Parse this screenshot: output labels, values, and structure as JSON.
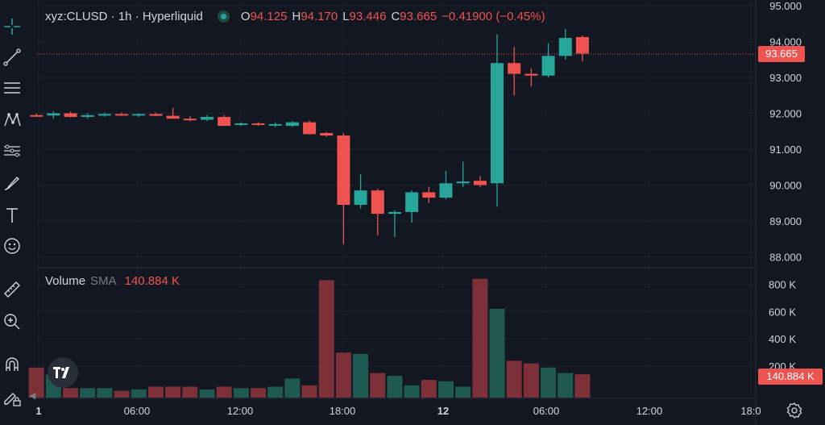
{
  "header": {
    "symbol": "xyz:CLUSD · 1h · Hyperliquid",
    "ohlc": [
      {
        "label": "O",
        "value": "94.125"
      },
      {
        "label": "H",
        "value": "94.170"
      },
      {
        "label": "L",
        "value": "93.446"
      },
      {
        "label": "C",
        "value": "93.665"
      }
    ],
    "change": "−0.41900 (−0.45%)"
  },
  "volume_legend": {
    "name": "Volume",
    "sma_label": "SMA",
    "value": "140.884 K"
  },
  "price_tag": "93.665",
  "volume_tag": "140.884 K",
  "colors": {
    "up": "#26a69a",
    "down": "#ef5350",
    "vol_up": "#1f5a52",
    "vol_down": "#7d3038",
    "bg": "#131722",
    "grid": "#1e222d",
    "text": "#d1d4dc"
  },
  "toolbar": [
    "crosshair-icon",
    "trend-line-icon",
    "horizontal-lines-icon",
    "pattern-icon",
    "fib-icon",
    "brush-icon",
    "text-icon",
    "emoji-icon",
    "ruler-icon",
    "zoom-icon",
    "magnet-icon",
    "lock-pencil-icon"
  ],
  "chart_data": {
    "type": "candlestick",
    "price_axis": {
      "labels": [
        "95.000",
        "94.000",
        "93.000",
        "92.000",
        "91.000",
        "90.000",
        "89.000",
        "88.000"
      ]
    },
    "volume_axis": {
      "labels": [
        "800 K",
        "600 K",
        "400 K",
        "200 K"
      ]
    },
    "time_axis": {
      "labels": [
        "1",
        "06:00",
        "12:00",
        "18:00",
        "12",
        "06:00",
        "12:00",
        "18:0"
      ]
    },
    "candles": [
      [
        91.95,
        92.0,
        91.9,
        91.94
      ],
      [
        91.94,
        92.05,
        91.85,
        92.0
      ],
      [
        92.0,
        92.05,
        91.88,
        91.9
      ],
      [
        91.9,
        92.0,
        91.85,
        91.95
      ],
      [
        91.95,
        92.02,
        91.9,
        91.98
      ],
      [
        91.98,
        92.02,
        91.93,
        91.95
      ],
      [
        91.95,
        92.0,
        91.9,
        91.98
      ],
      [
        91.98,
        92.02,
        91.92,
        91.93
      ],
      [
        91.93,
        92.15,
        91.88,
        91.85
      ],
      [
        91.85,
        91.92,
        91.78,
        91.82
      ],
      [
        91.82,
        91.95,
        91.78,
        91.9
      ],
      [
        91.9,
        91.95,
        91.65,
        91.65
      ],
      [
        91.68,
        91.75,
        91.65,
        91.72
      ],
      [
        91.72,
        91.75,
        91.65,
        91.7
      ],
      [
        91.68,
        91.75,
        91.62,
        91.7
      ],
      [
        91.65,
        91.78,
        91.62,
        91.75
      ],
      [
        91.75,
        91.8,
        91.4,
        91.42
      ],
      [
        91.45,
        91.48,
        91.35,
        91.38
      ],
      [
        91.38,
        91.45,
        88.35,
        89.45
      ],
      [
        89.45,
        90.3,
        89.35,
        89.85
      ],
      [
        89.85,
        89.9,
        88.6,
        89.2
      ],
      [
        89.2,
        89.3,
        88.55,
        89.25
      ],
      [
        89.25,
        89.85,
        88.95,
        89.8
      ],
      [
        89.8,
        89.95,
        89.5,
        89.65
      ],
      [
        89.65,
        90.4,
        89.6,
        90.05
      ],
      [
        90.05,
        90.65,
        89.95,
        90.1
      ],
      [
        90.12,
        90.25,
        89.95,
        90.0
      ],
      [
        90.05,
        94.2,
        89.4,
        93.4
      ],
      [
        93.4,
        93.85,
        92.5,
        93.1
      ],
      [
        93.1,
        93.25,
        92.75,
        93.05
      ],
      [
        93.05,
        93.95,
        93.0,
        93.6
      ],
      [
        93.6,
        94.35,
        93.5,
        94.1
      ],
      [
        94.125,
        94.17,
        93.446,
        93.665
      ]
    ],
    "volumes": [
      190,
      140,
      40,
      40,
      40,
      20,
      30,
      50,
      50,
      50,
      30,
      50,
      40,
      40,
      50,
      110,
      60,
      830,
      300,
      290,
      150,
      130,
      60,
      100,
      90,
      50,
      840,
      620,
      240,
      220,
      190,
      150,
      140.884
    ]
  }
}
